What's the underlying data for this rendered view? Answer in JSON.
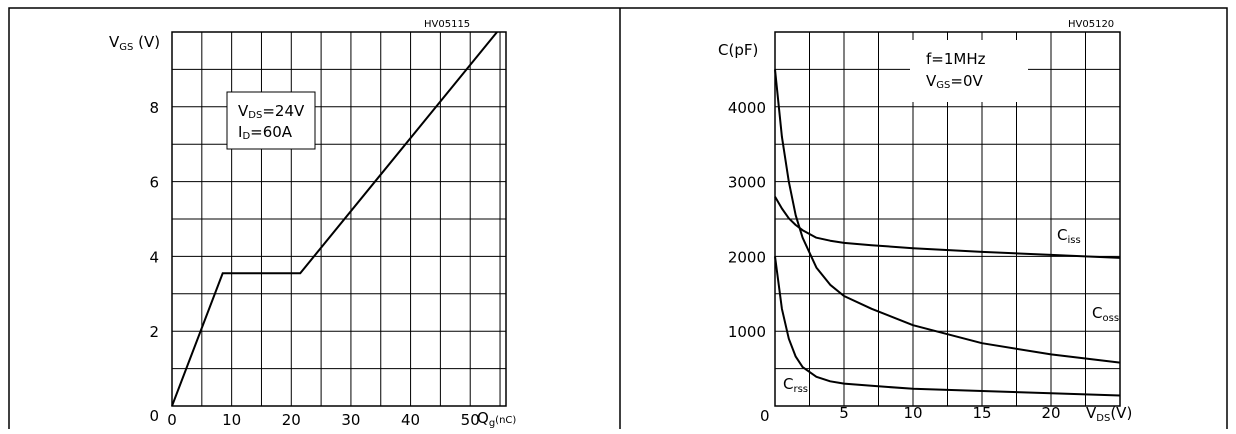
{
  "page": {
    "left_code": "HV05115",
    "right_code": "HV05120"
  },
  "chart_data": [
    {
      "type": "line",
      "title": "",
      "xlabel": {
        "main": "Q",
        "sub": "g",
        "tail": "(nC)"
      },
      "ylabel": {
        "main": "V",
        "sub": "GS",
        "tail": " (V)"
      },
      "xlim": [
        0,
        56
      ],
      "ylim": [
        0,
        10
      ],
      "x_ticks": [
        0,
        10,
        20,
        30,
        40,
        50
      ],
      "x_tick_labels": [
        "0",
        "10",
        "20",
        "30",
        "40",
        "50"
      ],
      "y_ticks": [
        0,
        2,
        4,
        6,
        8
      ],
      "y_tick_labels": [
        "0",
        "2",
        "4",
        "6",
        "8"
      ],
      "grid": true,
      "annotation": [
        {
          "main": "V",
          "sub": "DS",
          "tail": "=24V"
        },
        {
          "main": "I",
          "sub": "D",
          "tail": "=60A"
        }
      ],
      "series": [
        {
          "x": [
            0,
            8.5,
            21.5,
            54.5
          ],
          "y": [
            0,
            3.55,
            3.55,
            10
          ]
        }
      ]
    },
    {
      "type": "line",
      "title": "",
      "xlabel": {
        "main": "V",
        "sub": "DS",
        "tail": "(V)"
      },
      "ylabel": {
        "main": "C(pF)",
        "sub": "",
        "tail": ""
      },
      "xlim": [
        0,
        25
      ],
      "ylim": [
        0,
        5000
      ],
      "x_ticks": [
        0,
        5,
        10,
        15,
        20
      ],
      "x_tick_labels": [
        "0",
        "5",
        "10",
        "15",
        "20"
      ],
      "y_ticks": [
        1000,
        2000,
        3000,
        4000
      ],
      "y_tick_labels": [
        "1000",
        "2000",
        "3000",
        "4000"
      ],
      "origin_label": "0",
      "grid": true,
      "annotation": [
        {
          "main": "f=1MHz",
          "sub": "",
          "tail": ""
        },
        {
          "main": "V",
          "sub": "GS",
          "tail": "=0V"
        }
      ],
      "series": [
        {
          "name": "Ciss",
          "label": {
            "main": "C",
            "sub": "iss"
          },
          "x": [
            0,
            0.5,
            1,
            1.5,
            2,
            3,
            4,
            5,
            7,
            10,
            15,
            20,
            25
          ],
          "y": [
            2800,
            2640,
            2510,
            2420,
            2350,
            2250,
            2210,
            2180,
            2150,
            2110,
            2060,
            2020,
            1980
          ]
        },
        {
          "name": "Coss",
          "label": {
            "main": "C",
            "sub": "oss"
          },
          "x": [
            0,
            0.5,
            1,
            1.5,
            2,
            3,
            4,
            5,
            7,
            10,
            15,
            20,
            25
          ],
          "y": [
            4500,
            3600,
            3000,
            2550,
            2250,
            1850,
            1620,
            1470,
            1300,
            1080,
            840,
            690,
            580
          ]
        },
        {
          "name": "Crss",
          "label": {
            "main": "C",
            "sub": "rss"
          },
          "x": [
            0,
            0.5,
            1,
            1.5,
            2,
            3,
            4,
            5,
            7,
            10,
            15,
            20,
            25
          ],
          "y": [
            2000,
            1300,
            900,
            660,
            520,
            390,
            330,
            300,
            270,
            230,
            200,
            170,
            140
          ]
        }
      ]
    }
  ]
}
